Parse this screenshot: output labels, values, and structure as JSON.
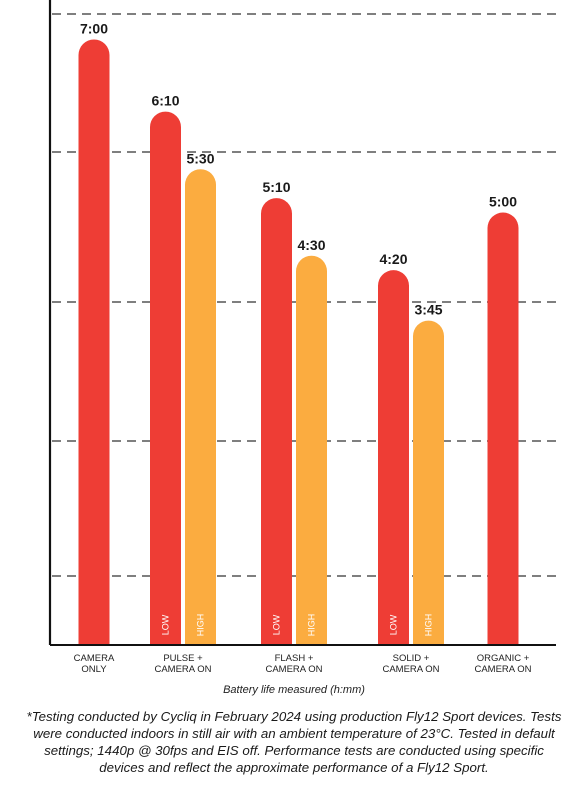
{
  "chart_data": {
    "type": "bar",
    "xlabel": "Battery life measured (h:mm)",
    "categories": [
      [
        "CAMERA",
        "ONLY"
      ],
      [
        "PULSE +",
        "CAMERA ON"
      ],
      [
        "FLASH +",
        "CAMERA ON"
      ],
      [
        "SOLID +",
        "CAMERA ON"
      ],
      [
        "ORGANIC +",
        "CAMERA ON"
      ]
    ],
    "bars": [
      {
        "category": 0,
        "value": 7.0,
        "label": "7:00",
        "level": ""
      },
      {
        "category": 1,
        "value": 6.1667,
        "label": "6:10",
        "level": "LOW"
      },
      {
        "category": 1,
        "value": 5.5,
        "label": "5:30",
        "level": "HIGH"
      },
      {
        "category": 2,
        "value": 5.1667,
        "label": "5:10",
        "level": "LOW"
      },
      {
        "category": 2,
        "value": 4.5,
        "label": "4:30",
        "level": "HIGH"
      },
      {
        "category": 3,
        "value": 4.3333,
        "label": "4:20",
        "level": "LOW"
      },
      {
        "category": 3,
        "value": 3.75,
        "label": "3:45",
        "level": "HIGH"
      },
      {
        "category": 4,
        "value": 5.0,
        "label": "5:00",
        "level": ""
      }
    ],
    "colors": {
      "low": "#ee3d35",
      "high": "#fbac40",
      "grid": "#555555",
      "axis": "#111111"
    },
    "grid": true,
    "legend": "none"
  },
  "footnote": "*Testing conducted by Cycliq in February 2024 using production Fly12 Sport devices. Tests were conducted indoors in still air with an ambient temperature of 23°C. Tested in default settings; 1440p @ 30fps and EIS off. Performance tests are conducted using specific devices and reflect the approximate performance of a Fly12 Sport."
}
